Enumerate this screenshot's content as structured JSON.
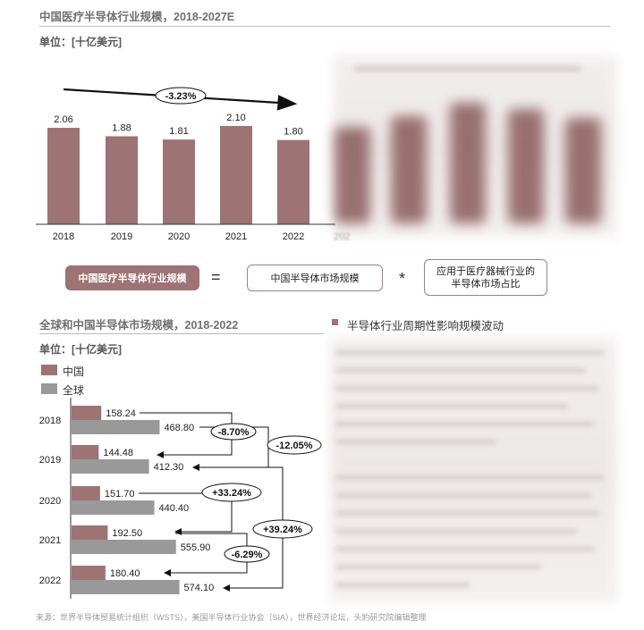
{
  "top_chart": {
    "title": "中国医疗半导体行业规模，2018-2027E",
    "unit": "单位：[十亿美元]",
    "cagr_label": "-3.23%",
    "blurred_year_fragment": "202"
  },
  "formula": {
    "left": "中国医疗半导体行业规模",
    "equals": "=",
    "middle": "中国半导体市场规模",
    "times": "*",
    "right_line1": "应用于医疗器械行业的",
    "right_line2": "半导体市场占比"
  },
  "bottom_chart": {
    "title": "全球和中国半导体市场规模，2018-2022",
    "unit": "单位：[十亿美元]",
    "growth_labels": [
      "-8.70%",
      "-12.05%",
      "+33.24%",
      "+39.24%",
      "-6.29%"
    ]
  },
  "right_section": {
    "heading": "半导体行业周期性影响规模波动"
  },
  "source": "来源：世界半导体贸易统计组织（WSTS），美国半导体行业协会（SIA），世界经济论坛，头豹研究院编辑整理",
  "colors": {
    "china": "#9d7373",
    "global": "#999999",
    "text": "#333333"
  },
  "chart_data": [
    {
      "type": "bar",
      "title": "中国医疗半导体行业规模，2018-2027E",
      "unit": "单位：[十亿美元]",
      "categories": [
        "2018",
        "2019",
        "2020",
        "2021",
        "2022"
      ],
      "values": [
        2.06,
        1.88,
        1.81,
        2.1,
        1.8
      ],
      "ylim": [
        0,
        2.5
      ],
      "annotation": "-3.23%",
      "grid": false
    },
    {
      "type": "bar",
      "orientation": "horizontal",
      "title": "全球和中国半导体市场规模，2018-2022",
      "unit": "单位：[十亿美元]",
      "categories": [
        "2018",
        "2019",
        "2020",
        "2021",
        "2022"
      ],
      "series": [
        {
          "name": "中国",
          "values": [
            158.24,
            144.48,
            151.7,
            192.5,
            180.4
          ],
          "color": "#9d7373"
        },
        {
          "name": "全球",
          "values": [
            468.8,
            412.3,
            440.4,
            555.9,
            574.1
          ],
          "color": "#999999"
        }
      ],
      "xlim": [
        0,
        600
      ],
      "legend": "top-left",
      "grid": false
    }
  ]
}
